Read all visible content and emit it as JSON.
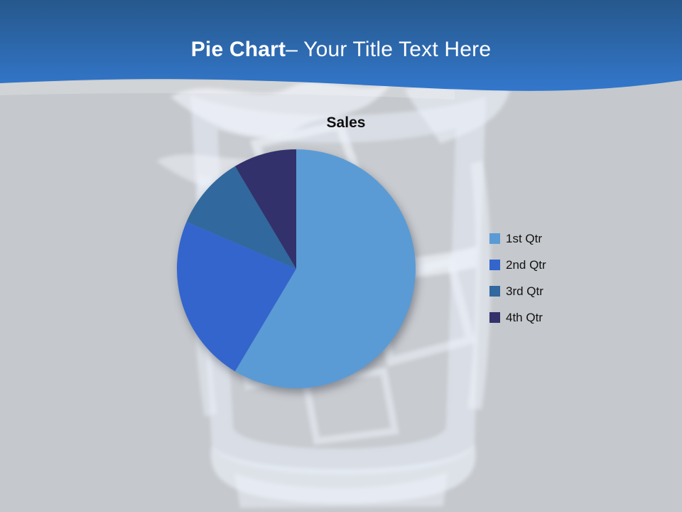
{
  "slide": {
    "header": {
      "title_bold": "Pie Chart",
      "title_rest": "– Your Title Text Here"
    },
    "colors": {
      "background": "#c5c8cc",
      "header_gradient_top": "#26588c",
      "header_gradient_mid": "#2d69ae",
      "header_gradient_bottom": "#3377cc",
      "header_title_text": "#ffffff",
      "chart_title_text": "#0d0d0d",
      "legend_text": "#111111"
    }
  },
  "chart_data": {
    "type": "pie",
    "title": "Sales",
    "categories": [
      "1st Qtr",
      "2nd Qtr",
      "3rd Qtr",
      "4th Qtr"
    ],
    "values": [
      8.2,
      3.2,
      1.4,
      1.2
    ],
    "colors": [
      "#5b9bd5",
      "#3465cd",
      "#31689e",
      "#32316b"
    ],
    "start_angle_deg": 0,
    "direction": "clockwise",
    "legend_position": "right"
  }
}
